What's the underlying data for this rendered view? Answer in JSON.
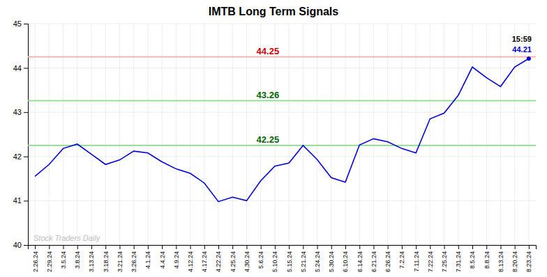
{
  "chart_data": {
    "type": "line",
    "title": "IMTB Long Term Signals",
    "categories": [
      "2.26.24",
      "2.29.24",
      "3.5.24",
      "3.8.24",
      "3.13.24",
      "3.18.24",
      "3.21.24",
      "3.26.24",
      "4.1.24",
      "4.4.24",
      "4.9.24",
      "4.12.24",
      "4.17.24",
      "4.22.24",
      "4.25.24",
      "4.30.24",
      "5.6.24",
      "5.10.24",
      "5.15.24",
      "5.21.24",
      "5.24.24",
      "5.30.24",
      "6.10.24",
      "6.14.24",
      "6.21.24",
      "6.26.24",
      "7.2.24",
      "7.11.24",
      "7.22.24",
      "7.25.24",
      "7.31.24",
      "8.5.24",
      "8.8.24",
      "8.13.24",
      "8.20.24",
      "8.23.24"
    ],
    "values": [
      41.55,
      41.82,
      42.18,
      42.28,
      42.05,
      41.82,
      41.92,
      42.12,
      42.08,
      41.88,
      41.72,
      41.62,
      41.4,
      40.98,
      41.08,
      41.0,
      41.45,
      41.78,
      41.85,
      42.25,
      41.93,
      41.52,
      41.42,
      42.26,
      42.4,
      42.33,
      42.18,
      42.08,
      42.85,
      42.98,
      43.38,
      44.02,
      43.78,
      43.58,
      44.02,
      44.21
    ],
    "color": "#0000dd",
    "ylim": [
      40,
      45
    ],
    "yticks": [
      40,
      41,
      42,
      43,
      44,
      45
    ],
    "grid": true,
    "hlines": [
      {
        "value": 44.25,
        "color": "#ffaaaa",
        "label": "44.25",
        "label_color": "#cc0000"
      },
      {
        "value": 43.26,
        "color": "#88dd88",
        "label": "43.26",
        "label_color": "#006600"
      },
      {
        "value": 42.25,
        "color": "#88dd88",
        "label": "42.25",
        "label_color": "#006600"
      }
    ],
    "annotations": [
      {
        "text": "15:59",
        "color": "#000000"
      },
      {
        "text": "44.21",
        "color": "#0000dd"
      }
    ],
    "watermark": {
      "text": "Stock Traders Daily",
      "color": "#bbbbbb"
    }
  }
}
